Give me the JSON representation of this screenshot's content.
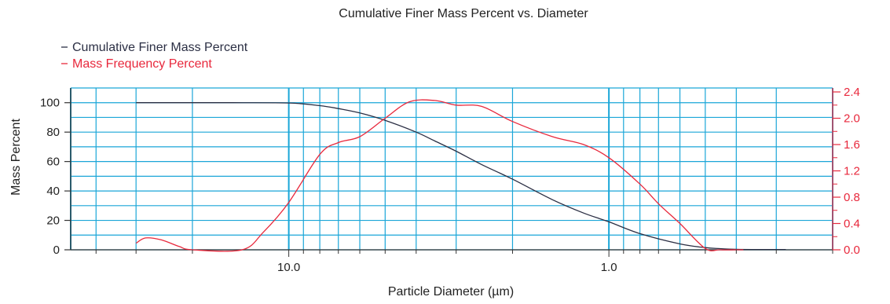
{
  "chart_data": {
    "type": "line",
    "title": "Cumulative Finer Mass Percent vs. Diameter",
    "xlabel": "Particle Diameter (µm)",
    "ylabel": "Mass Percent",
    "x_scale": "log",
    "x_reversed": true,
    "xlim": [
      48,
      0.2
    ],
    "x_ticks": [
      {
        "value": 10,
        "label": "10.0"
      },
      {
        "value": 1,
        "label": "1.0"
      }
    ],
    "ylim": [
      0,
      110
    ],
    "y_ticks": [
      0,
      20,
      40,
      60,
      80,
      100
    ],
    "y2lim": [
      0,
      2.46
    ],
    "y2_ticks": [
      "0.0",
      "0.4",
      "0.8",
      "1.2",
      "1.6",
      "2.0",
      "2.4"
    ],
    "grid": true,
    "legend_position": "top-left",
    "colors": {
      "cumulative": "#2b2f44",
      "frequency": "#e8283c",
      "grid": "#1aa6d8",
      "axis2": "#e8283c"
    },
    "series": [
      {
        "name": "Cumulative Finer Mass Percent",
        "axis": "left",
        "x": [
          30,
          20,
          15,
          10,
          8,
          7,
          6,
          5,
          4,
          3.5,
          3,
          2.5,
          2,
          1.5,
          1.2,
          1.0,
          0.8,
          0.6,
          0.5,
          0.45,
          0.4,
          0.35,
          0.3,
          0.28
        ],
        "y": [
          100,
          100,
          100,
          99.8,
          98,
          96,
          93,
          88,
          80,
          74,
          67,
          58,
          48,
          34,
          25,
          19,
          11,
          4,
          1.5,
          0.8,
          0.3,
          0.2,
          0.2,
          0.2
        ]
      },
      {
        "name": "Mass Frequency Percent",
        "axis": "right",
        "x": [
          30,
          28,
          25,
          22,
          20,
          14,
          12,
          10,
          8,
          7,
          6,
          5,
          4.2,
          3.5,
          3,
          2.5,
          2,
          1.5,
          1.2,
          1.0,
          0.8,
          0.7,
          0.6,
          0.5,
          0.45,
          0.4,
          0.38
        ],
        "y": [
          0.1,
          0.18,
          0.15,
          0.05,
          0.0,
          0.0,
          0.27,
          0.72,
          1.45,
          1.63,
          1.72,
          2.0,
          2.25,
          2.27,
          2.2,
          2.18,
          1.95,
          1.72,
          1.6,
          1.4,
          1.0,
          0.7,
          0.4,
          0.02,
          0.0,
          0.0,
          0.0
        ]
      }
    ]
  }
}
